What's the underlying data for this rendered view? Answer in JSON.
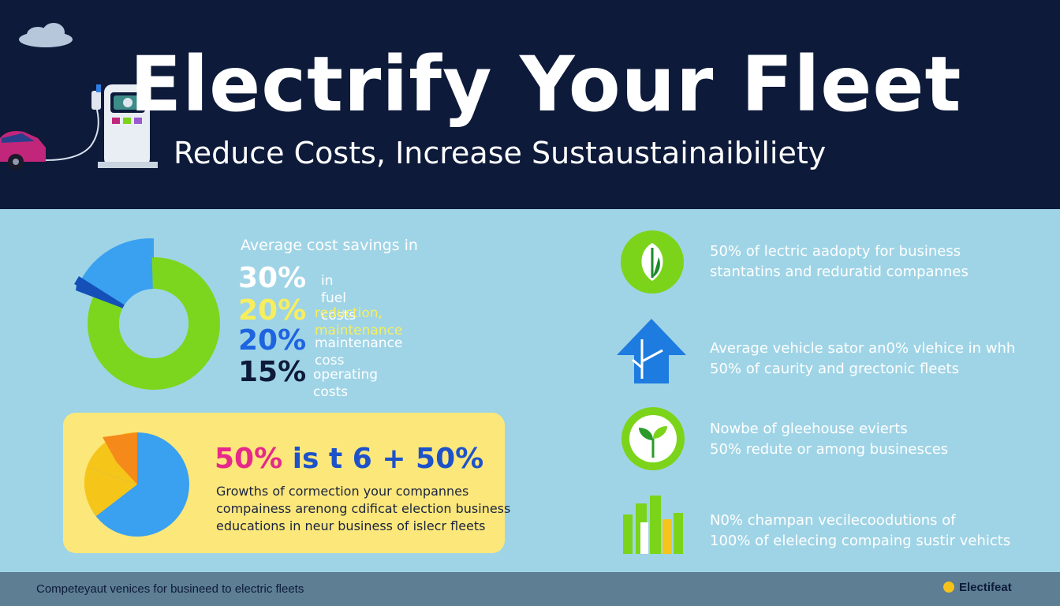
{
  "header": {
    "title": "Electrify Your Fleet",
    "subtitle": "Reduce Costs, Increase Sustaustainaibiliety"
  },
  "savings": {
    "lede": "Average cost savings in",
    "stats": [
      {
        "pct": "30%",
        "label": "in fuel costs",
        "pct_color": "#ffffff",
        "label_color": "#ffffff"
      },
      {
        "pct": "20%",
        "label": "reduction, maintenance",
        "pct_color": "#f7ee5e",
        "label_color": "#f7ee5e"
      },
      {
        "pct": "20%",
        "label": "maintenance coss",
        "pct_color": "#1e64e0",
        "label_color": "#ffffff"
      },
      {
        "pct": "15%",
        "label": "operating costs",
        "pct_color": "#0d1a3a",
        "label_color": "#ffffff"
      }
    ]
  },
  "card": {
    "headline_pct": "50%",
    "headline_rest": "is t 6 + 50%",
    "lines": [
      "Growths of cormection your compannes",
      "compainess arenong cdificat election business",
      "educations in neur business of islecr fleets"
    ]
  },
  "features": [
    {
      "icon": "leaf-icon",
      "line1": "50% of lectric aadopty for business",
      "line2": "stantatins and reduratid compannes"
    },
    {
      "icon": "arrow-up-icon",
      "line1": "Average vehicle sator an0% vlehice in whh",
      "line2": "50% of caurity and grectonic fleets"
    },
    {
      "icon": "sprout-icon",
      "line1": "Nowbe of gleehouse evierts",
      "line2": "50% redute or among businesces"
    },
    {
      "icon": "bar-chart-icon",
      "line1": "N0% champan vecilecoodutions of",
      "line2": "100% of elelecing compaing sustir vehicts"
    }
  ],
  "footer": {
    "text": "Competeyaut venices for busineed to electric fleets",
    "brand": "Electifeat"
  },
  "colors": {
    "header_bg": "#0d1a3a",
    "main_bg": "#9fd4e6",
    "footer_bg": "#5d7e93",
    "green": "#7bd41a",
    "blue": "#1e7be0",
    "yellow_card": "#fce77a"
  }
}
